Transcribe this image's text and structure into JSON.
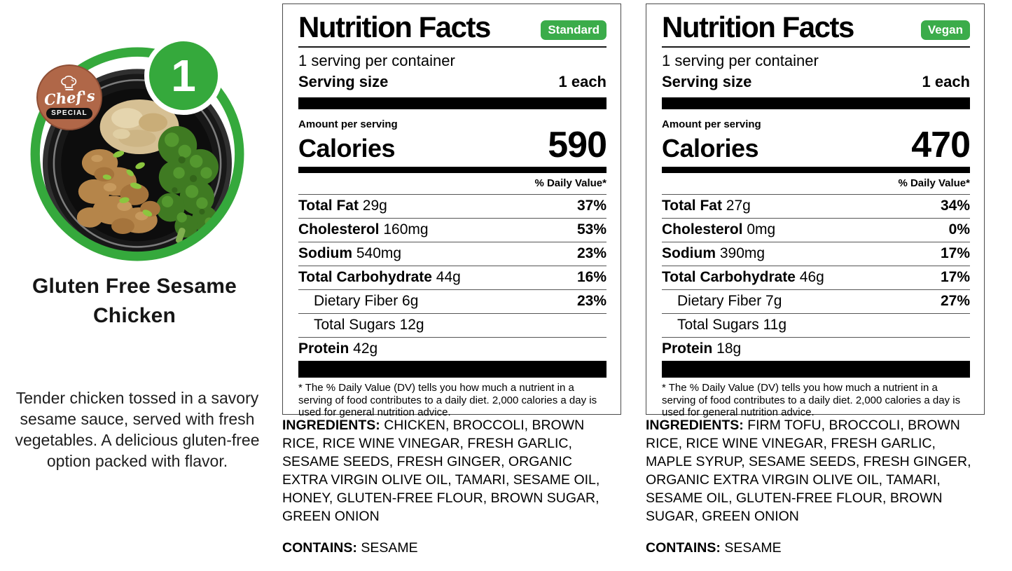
{
  "colors": {
    "badge_green": "#3bac4a",
    "ring_green": "#35a93c",
    "chef_badge_brown": "#b06748",
    "bar_black": "#000000"
  },
  "dish": {
    "number": "1",
    "title": "Gluten Free Sesame Chicken",
    "description": "Tender chicken tossed in a savory sesame sauce, served with fresh vegetables. A delicious gluten-free option packed with flavor.",
    "chef_badge": {
      "line1": "Chef's",
      "line2": "SPECIAL"
    }
  },
  "labels": [
    {
      "title": "Nutrition Facts",
      "variant": "Standard",
      "servings_per_container": "1 serving per container",
      "serving_size_label": "Serving size",
      "serving_size_value": "1 each",
      "amount_per_serving": "Amount per serving",
      "calories_label": "Calories",
      "calories": "590",
      "daily_value_header": "% Daily Value*",
      "rows": [
        {
          "name": "Total Fat",
          "amount": "29g",
          "dv": "37%",
          "bold": true,
          "indent": false
        },
        {
          "name": "Cholesterol",
          "amount": "160mg",
          "dv": "53%",
          "bold": true,
          "indent": false
        },
        {
          "name": "Sodium",
          "amount": "540mg",
          "dv": "23%",
          "bold": true,
          "indent": false
        },
        {
          "name": "Total Carbohydrate",
          "amount": "44g",
          "dv": "16%",
          "bold": true,
          "indent": false
        },
        {
          "name": "Dietary Fiber",
          "amount": "6g",
          "dv": "23%",
          "bold": false,
          "indent": true
        },
        {
          "name": "Total Sugars",
          "amount": "12g",
          "dv": "",
          "bold": false,
          "indent": true
        },
        {
          "name": "Protein",
          "amount": "42g",
          "dv": "",
          "bold": true,
          "indent": false
        }
      ],
      "footnote": "* The % Daily Value (DV) tells you how much a nutrient in a serving of food contributes to a daily diet. 2,000 calories a day is used for general nutrition advice.",
      "ingredients_label": "INGREDIENTS:",
      "ingredients": "CHICKEN, BROCCOLI, BROWN RICE, RICE WINE VINEGAR, FRESH GARLIC, SESAME SEEDS, FRESH GINGER, ORGANIC EXTRA VIRGIN OLIVE OIL, TAMARI, SESAME OIL, HONEY, GLUTEN-FREE FLOUR, BROWN SUGAR, GREEN ONION",
      "contains_label": "CONTAINS:",
      "contains": "SESAME"
    },
    {
      "title": "Nutrition Facts",
      "variant": "Vegan",
      "servings_per_container": "1 serving per container",
      "serving_size_label": "Serving size",
      "serving_size_value": "1 each",
      "amount_per_serving": "Amount per serving",
      "calories_label": "Calories",
      "calories": "470",
      "daily_value_header": "% Daily Value*",
      "rows": [
        {
          "name": "Total Fat",
          "amount": "27g",
          "dv": "34%",
          "bold": true,
          "indent": false
        },
        {
          "name": "Cholesterol",
          "amount": "0mg",
          "dv": "0%",
          "bold": true,
          "indent": false
        },
        {
          "name": "Sodium",
          "amount": "390mg",
          "dv": "17%",
          "bold": true,
          "indent": false
        },
        {
          "name": "Total Carbohydrate",
          "amount": "46g",
          "dv": "17%",
          "bold": true,
          "indent": false
        },
        {
          "name": "Dietary Fiber",
          "amount": "7g",
          "dv": "27%",
          "bold": false,
          "indent": true
        },
        {
          "name": "Total Sugars",
          "amount": "11g",
          "dv": "",
          "bold": false,
          "indent": true
        },
        {
          "name": "Protein",
          "amount": "18g",
          "dv": "",
          "bold": true,
          "indent": false
        }
      ],
      "footnote": "* The % Daily Value (DV) tells you how much a nutrient in a serving of food contributes to a daily diet. 2,000 calories a day is used for general nutrition advice.",
      "ingredients_label": "INGREDIENTS:",
      "ingredients": "FIRM TOFU, BROCCOLI, BROWN RICE, RICE WINE VINEGAR, FRESH GARLIC, MAPLE SYRUP, SESAME SEEDS, FRESH GINGER, ORGANIC EXTRA VIRGIN OLIVE OIL, TAMARI, SESAME OIL, GLUTEN-FREE FLOUR, BROWN SUGAR, GREEN ONION",
      "contains_label": "CONTAINS:",
      "contains": "SESAME"
    }
  ]
}
